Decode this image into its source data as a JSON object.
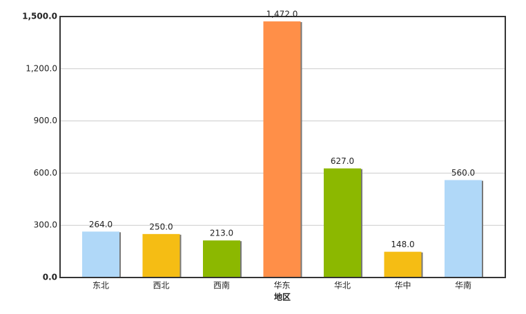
{
  "chart_data": {
    "type": "bar",
    "x_label": "地区",
    "categories": [
      "东北",
      "西北",
      "西南",
      "华东",
      "华北",
      "华中",
      "华南"
    ],
    "values": [
      264,
      250,
      213,
      1472,
      627,
      148,
      560
    ],
    "value_labels": [
      "264.0",
      "250.0",
      "213.0",
      "1,472.0",
      "627.0",
      "148.0",
      "560.0"
    ],
    "colors": [
      "#b0d8f8",
      "#f5bd14",
      "#8cb800",
      "#ff8f48",
      "#8cb800",
      "#f5bd14",
      "#b0d8f8"
    ],
    "ylim": [
      0,
      1500
    ],
    "yticks": [
      {
        "value": 0,
        "label": "0.0"
      },
      {
        "value": 300,
        "label": "300.0"
      },
      {
        "value": 600,
        "label": "600.0"
      },
      {
        "value": 900,
        "label": "900.0"
      },
      {
        "value": 1200,
        "label": "1,200.0"
      },
      {
        "value": 1500,
        "label": "1,500.0"
      }
    ],
    "grid": true
  }
}
